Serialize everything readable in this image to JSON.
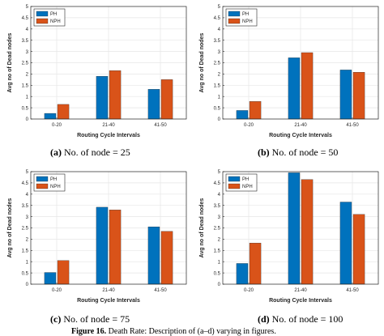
{
  "chart_data": [
    {
      "type": "bar",
      "categories": [
        "0-20",
        "21-40",
        "41-50"
      ],
      "series": [
        {
          "name": "PH",
          "values": [
            0.25,
            1.9,
            1.32
          ]
        },
        {
          "name": "NPH",
          "values": [
            0.65,
            2.15,
            1.75
          ]
        }
      ],
      "xlabel": "Routing Cycle Intervals",
      "ylabel": "Avg no of Dead nodes",
      "ylim": [
        0,
        5
      ],
      "yticks": [
        0,
        0.5,
        1,
        1.5,
        2,
        2.5,
        3,
        3.5,
        4,
        4.5,
        5
      ],
      "grid": true,
      "legend": "top-left",
      "caption_label": "(a)",
      "caption_text": "No. of node = 25"
    },
    {
      "type": "bar",
      "categories": [
        "0-20",
        "21-40",
        "41-50"
      ],
      "series": [
        {
          "name": "PH",
          "values": [
            0.38,
            2.72,
            2.18
          ]
        },
        {
          "name": "NPH",
          "values": [
            0.78,
            2.95,
            2.08
          ]
        }
      ],
      "xlabel": "Routing Cycle Intervals",
      "ylabel": "Avg no of Dead nodes",
      "ylim": [
        0,
        5
      ],
      "yticks": [
        0,
        0.5,
        1,
        1.5,
        2,
        2.5,
        3,
        3.5,
        4,
        4.5,
        5
      ],
      "grid": true,
      "legend": "top-left",
      "caption_label": "(b)",
      "caption_text": "No. of node = 50"
    },
    {
      "type": "bar",
      "categories": [
        "0-20",
        "21-40",
        "41-50"
      ],
      "series": [
        {
          "name": "PH",
          "values": [
            0.52,
            3.42,
            2.55
          ]
        },
        {
          "name": "NPH",
          "values": [
            1.05,
            3.3,
            2.35
          ]
        }
      ],
      "xlabel": "Routing Cycle Intervals",
      "ylabel": "Avg no of Dead nodes",
      "ylim": [
        0,
        5
      ],
      "yticks": [
        0,
        0.5,
        1,
        1.5,
        2,
        2.5,
        3,
        3.5,
        4,
        4.5,
        5
      ],
      "grid": true,
      "legend": "top-left",
      "caption_label": "(c)",
      "caption_text": "No. of node = 75"
    },
    {
      "type": "bar",
      "categories": [
        "0-20",
        "21-40",
        "41-50"
      ],
      "series": [
        {
          "name": "PH",
          "values": [
            0.92,
            4.95,
            3.65
          ]
        },
        {
          "name": "NPH",
          "values": [
            1.83,
            4.65,
            3.1
          ]
        }
      ],
      "xlabel": "Routing Cycle Intervals",
      "ylabel": "Avg no of Dead nodes",
      "ylim": [
        0,
        5
      ],
      "yticks": [
        0,
        0.5,
        1,
        1.5,
        2,
        2.5,
        3,
        3.5,
        4,
        4.5,
        5
      ],
      "grid": true,
      "legend": "top-left",
      "caption_label": "(d)",
      "caption_text": "No. of node = 100"
    }
  ],
  "colors": {
    "PH": "#0072bd",
    "NPH": "#d95319",
    "grid": "#e6e6e6",
    "axis": "#262626"
  },
  "footer": {
    "label": "Figure 16.",
    "text": "Death Rate: Description of (a–d) varying in figures."
  }
}
